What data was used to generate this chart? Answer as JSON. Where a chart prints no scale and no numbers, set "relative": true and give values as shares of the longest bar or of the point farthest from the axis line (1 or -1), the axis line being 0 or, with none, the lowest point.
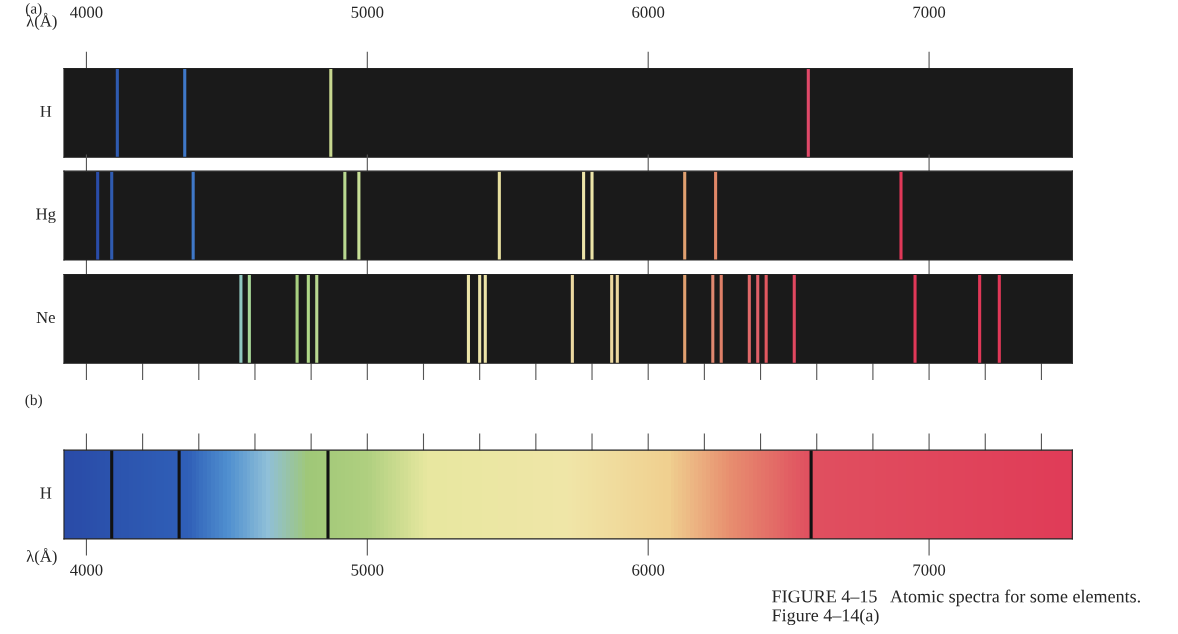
{
  "chart_data": [
    {
      "type": "bar",
      "title": "(a)",
      "ylabel": "H",
      "xlabel": "λ(Å)",
      "relative": true,
      "xlim": [
        3920,
        7510
      ],
      "xticks": [
        4000,
        5000,
        6000,
        7000
      ],
      "x": [
        4110,
        4350,
        4870,
        6570
      ],
      "values": [
        1,
        1,
        1,
        1
      ],
      "colors": [
        "#2f5bb0",
        "#3f78c8",
        "#c8d890",
        "#e04868"
      ]
    },
    {
      "type": "bar",
      "ylabel": "Hg",
      "relative": true,
      "xlim": [
        3920,
        7510
      ],
      "tick_labels": false,
      "xticks": [
        4000,
        5000,
        6000,
        7000
      ],
      "x": [
        4040,
        4090,
        4380,
        4920,
        4970,
        5470,
        5770,
        5800,
        6130,
        6240,
        6900
      ],
      "values": [
        1,
        1,
        1,
        1,
        1,
        1,
        1,
        1,
        1,
        1,
        1
      ],
      "colors": [
        "#2a4ca8",
        "#2f5bb0",
        "#3f78c8",
        "#b8d890",
        "#c8e098",
        "#e8e0a0",
        "#ece4a8",
        "#ece4a8",
        "#e0a070",
        "#e08868",
        "#e03858"
      ]
    },
    {
      "type": "bar",
      "ylabel": "Ne",
      "relative": true,
      "xlim": [
        3920,
        7510
      ],
      "tick_labels": false,
      "xticks": [
        4000,
        5000,
        6000,
        7000
      ],
      "x": [
        4550,
        4580,
        4750,
        4790,
        4820,
        5360,
        5400,
        5420,
        5730,
        5870,
        5890,
        6130,
        6230,
        6260,
        6360,
        6390,
        6420,
        6520,
        6950,
        7180,
        7250
      ],
      "values": [
        1,
        1,
        1,
        1,
        1,
        1,
        1,
        1,
        1,
        1,
        1,
        1,
        1,
        1,
        1,
        1,
        1,
        1,
        1,
        1,
        1
      ],
      "colors": [
        "#90c8c0",
        "#a8d898",
        "#a8d080",
        "#b0d888",
        "#b8d890",
        "#ece4a8",
        "#ece4a8",
        "#ece4a8",
        "#ecd8a0",
        "#ecd8a0",
        "#ecd8a0",
        "#e0a070",
        "#e08870",
        "#e08068",
        "#e06868",
        "#e06068",
        "#e05860",
        "#e04860",
        "#e03858",
        "#e03858",
        "#e03858"
      ]
    },
    {
      "type": "bar",
      "title": "(b)",
      "ylabel": "H",
      "xlabel": "λ(Å)",
      "relative": true,
      "xlim": [
        3920,
        7510
      ],
      "xticks": [
        4000,
        5000,
        6000,
        7000
      ],
      "x": [
        4090,
        4330,
        4860,
        6580
      ],
      "values": [
        1,
        1,
        1,
        1
      ],
      "colors": [
        "#111111",
        "#111111",
        "#111111",
        "#111111"
      ],
      "annotations": [
        "FIGURE 4–15   Atomic spectra for some elements. Figure 4–14(a)"
      ]
    }
  ]
}
